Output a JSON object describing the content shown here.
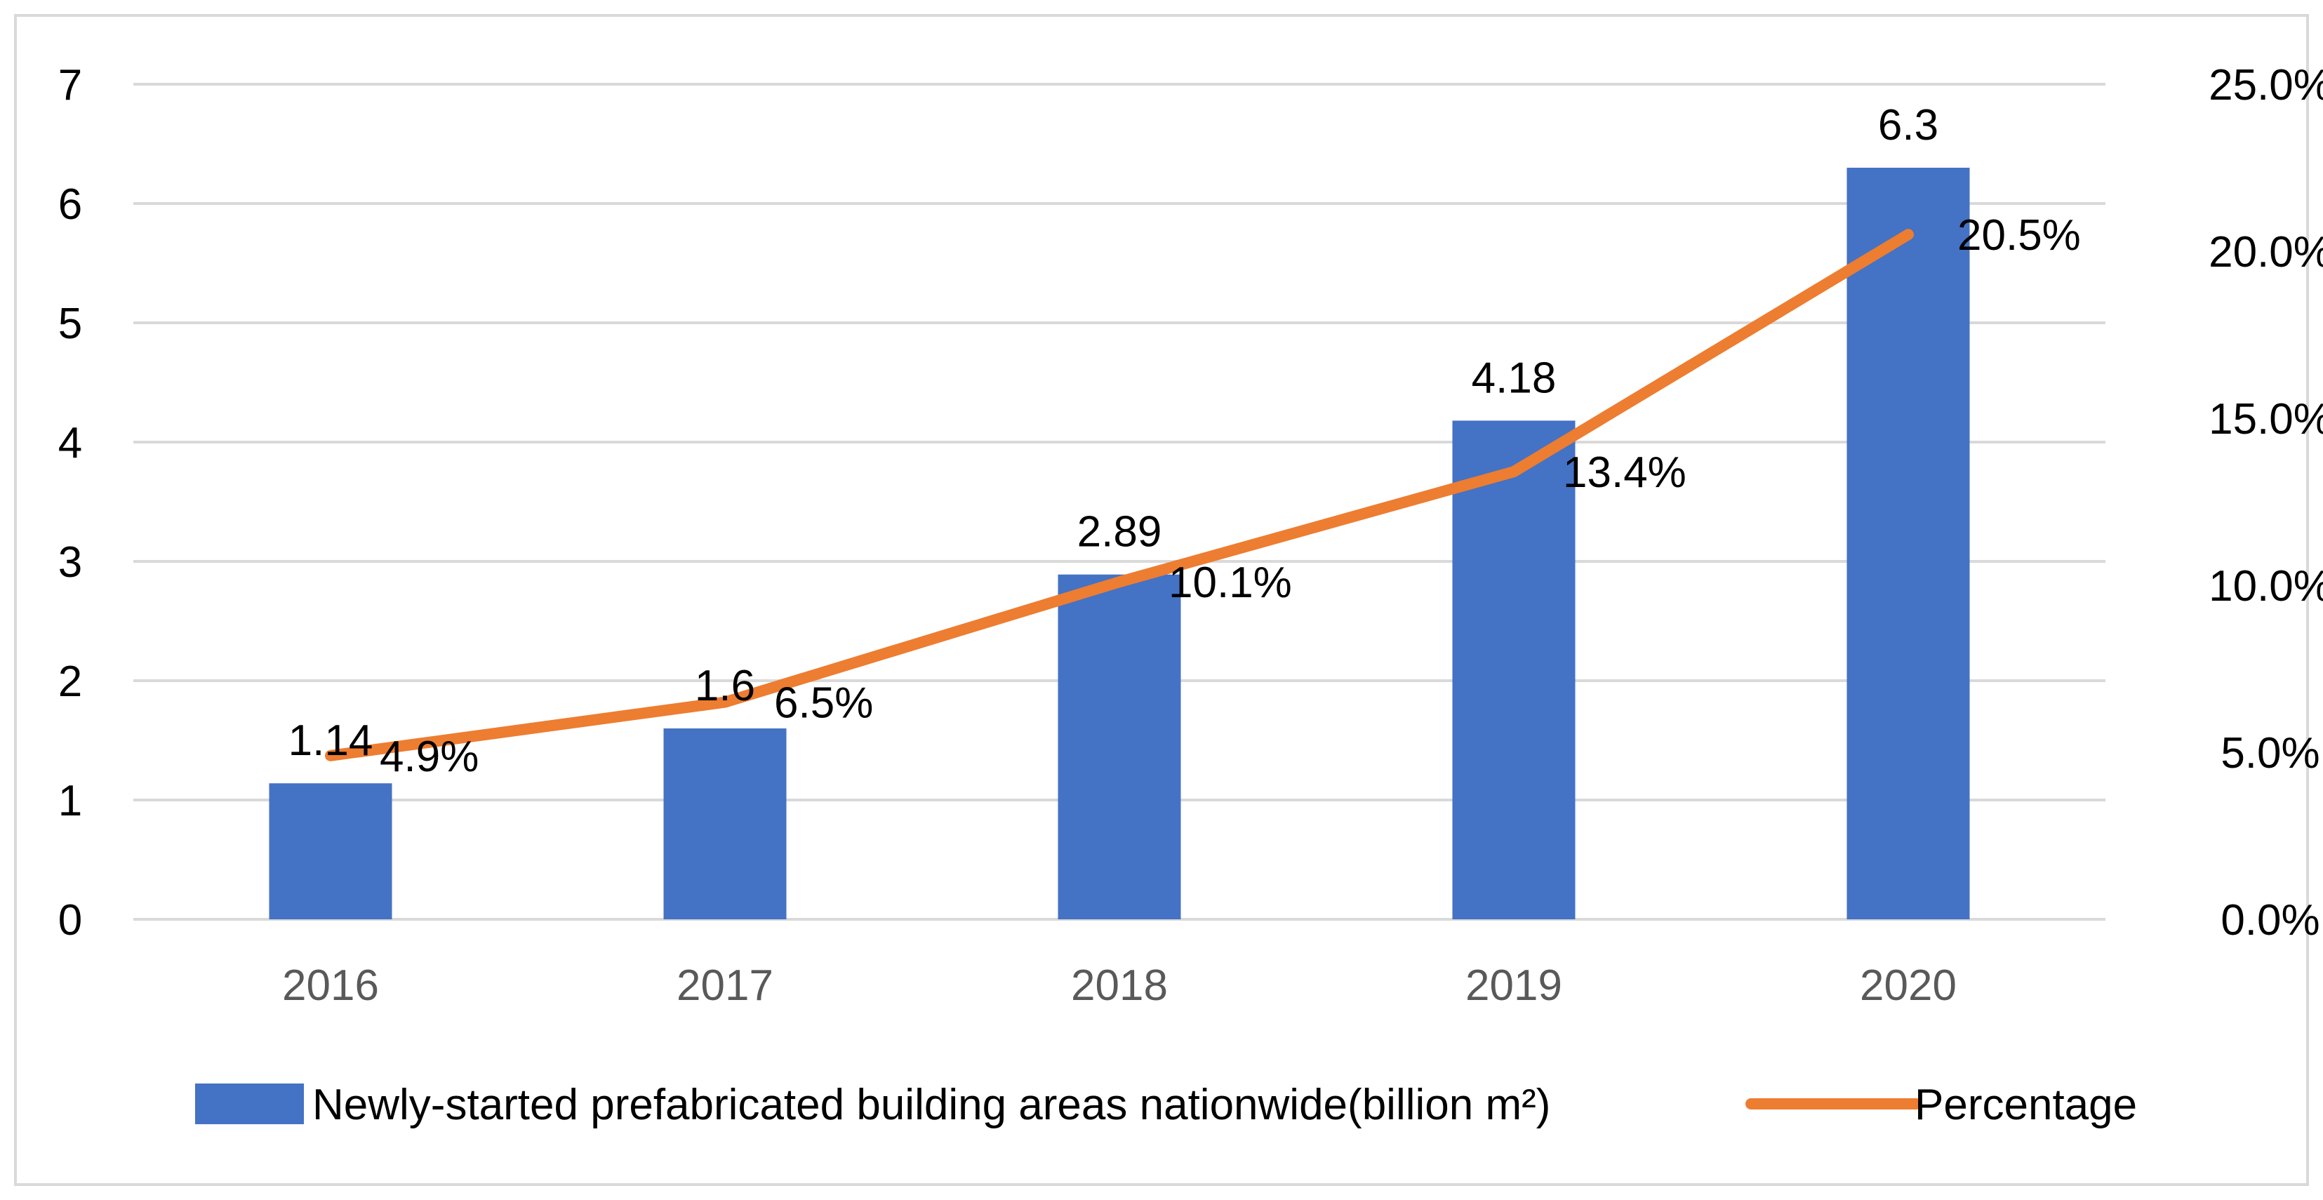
{
  "chart_data": {
    "type": "bar+line",
    "title": "",
    "categories": [
      "2016",
      "2017",
      "2018",
      "2019",
      "2020"
    ],
    "series": [
      {
        "name": "Newly-started prefabricated building areas nationwide(billion m²)",
        "kind": "bar",
        "axis": "left",
        "values": [
          1.14,
          1.6,
          2.89,
          4.18,
          6.3
        ],
        "labels": [
          "1.14",
          "1.6",
          "2.89",
          "4.18",
          "6.3"
        ],
        "color": "#4472C4"
      },
      {
        "name": "Percentage",
        "kind": "line",
        "axis": "right",
        "values": [
          4.9,
          6.5,
          10.1,
          13.4,
          20.5
        ],
        "labels": [
          "4.9%",
          "6.5%",
          "10.1%",
          "13.4%",
          "20.5%"
        ],
        "color": "#ED7D31"
      }
    ],
    "y_left": {
      "min": 0,
      "max": 7,
      "ticks": [
        "0",
        "1",
        "2",
        "3",
        "4",
        "5",
        "6",
        "7"
      ]
    },
    "y_right": {
      "min": 0,
      "max": 25,
      "ticks": [
        "0.0%",
        "5.0%",
        "10.0%",
        "15.0%",
        "20.0%",
        "25.0%"
      ]
    },
    "grid": true,
    "legend_position": "bottom",
    "gridline_color": "#D9D9D9",
    "border_color": "#D9D9D9"
  }
}
